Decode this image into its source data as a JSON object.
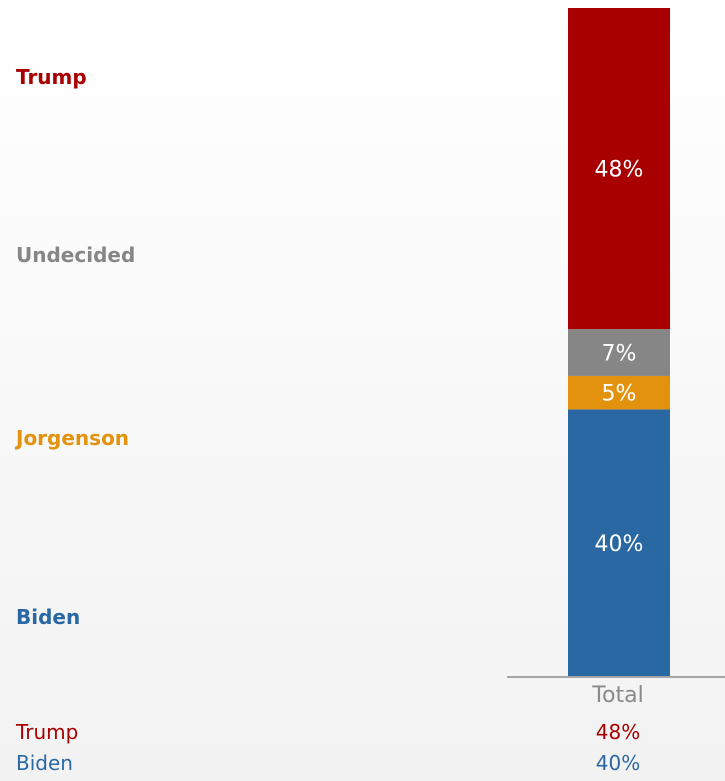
{
  "chart_data": {
    "type": "bar",
    "stacked": true,
    "categories": [
      "Total"
    ],
    "series": [
      {
        "name": "Biden",
        "values": [
          40
        ],
        "label": "40%",
        "color": "#2a68a4"
      },
      {
        "name": "Jorgenson",
        "values": [
          5
        ],
        "label": "5%",
        "color": "#e3920d"
      },
      {
        "name": "Undecided",
        "values": [
          7
        ],
        "label": "7%",
        "color": "#868686"
      },
      {
        "name": "Trump",
        "values": [
          48
        ],
        "label": "48%",
        "color": "#a80000"
      }
    ],
    "ylim": [
      0,
      100
    ],
    "legend_placement": "left",
    "grid": false,
    "summary": [
      {
        "name": "Trump",
        "value": "48%",
        "color": "#a80000"
      },
      {
        "name": "Biden",
        "value": "40%",
        "color": "#2a68a4"
      }
    ]
  }
}
